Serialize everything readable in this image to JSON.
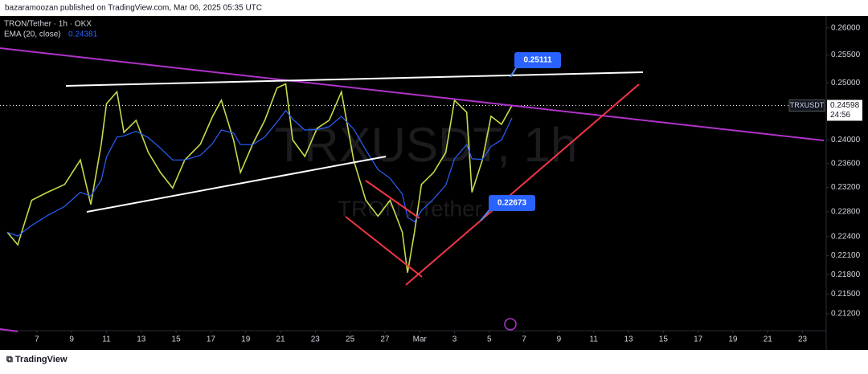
{
  "header": "bazaramoozan published on TradingView.com, Mar 06, 2025 05:35 UTC",
  "footer": "TradingView",
  "chart_data": {
    "type": "line",
    "title": "TRON/Tether · 1h · OKX",
    "watermark": [
      "TRXUSDT, 1h",
      "TRON / Tether"
    ],
    "log": true,
    "x": [
      -1.7,
      -1.1,
      -0.3,
      0.6,
      1.6,
      2.5,
      3.1,
      3.7,
      4.0,
      4.6,
      5.0,
      5.7,
      6.4,
      7.1,
      7.8,
      8.5,
      9.4,
      10.1,
      10.6,
      11.3,
      11.7,
      12.4,
      13.1,
      13.8,
      14.3,
      14.7,
      15.4,
      16.1,
      16.8,
      17.5,
      18.2,
      18.9,
      19.6,
      20.3,
      21.0,
      21.3,
      21.7,
      22.1,
      22.8,
      23.5,
      24.0,
      24.7,
      25.0,
      25.6,
      26.1,
      26.7,
      27.3
    ],
    "xlim": [
      -2.12,
      45.36
    ],
    "xticks": [
      {
        "value": 0,
        "label": "7"
      },
      {
        "value": 2,
        "label": "9"
      },
      {
        "value": 4,
        "label": "11"
      },
      {
        "value": 6,
        "label": "13"
      },
      {
        "value": 8,
        "label": "15"
      },
      {
        "value": 10,
        "label": "17"
      },
      {
        "value": 12,
        "label": "19"
      },
      {
        "value": 14,
        "label": "21"
      },
      {
        "value": 16,
        "label": "23"
      },
      {
        "value": 18,
        "label": "25"
      },
      {
        "value": 20,
        "label": "27"
      },
      {
        "value": 22,
        "label": "Mar"
      },
      {
        "value": 24,
        "label": "3"
      },
      {
        "value": 26,
        "label": "5"
      },
      {
        "value": 28,
        "label": "7"
      },
      {
        "value": 30,
        "label": "9"
      },
      {
        "value": 32,
        "label": "11"
      },
      {
        "value": 34,
        "label": "13"
      },
      {
        "value": 36,
        "label": "15"
      },
      {
        "value": 38,
        "label": "17"
      },
      {
        "value": 40,
        "label": "19"
      },
      {
        "value": 42,
        "label": "21"
      },
      {
        "value": 44,
        "label": "23"
      }
    ],
    "ylim": [
      0.2097,
      0.2625
    ],
    "yticks": [
      {
        "value": 0.26,
        "label": "0.26000"
      },
      {
        "value": 0.255,
        "label": "0.25500"
      },
      {
        "value": 0.25,
        "label": "0.25000"
      },
      {
        "value": 0.24,
        "label": "0.24000"
      },
      {
        "value": 0.236,
        "label": "0.23600"
      },
      {
        "value": 0.232,
        "label": "0.23200"
      },
      {
        "value": 0.228,
        "label": "0.22800"
      },
      {
        "value": 0.224,
        "label": "0.22400"
      },
      {
        "value": 0.221,
        "label": "0.22100"
      },
      {
        "value": 0.218,
        "label": "0.21800"
      },
      {
        "value": 0.215,
        "label": "0.21500"
      },
      {
        "value": 0.212,
        "label": "0.21200"
      }
    ],
    "series": [
      {
        "name": "TRXUSDT",
        "color": "#c9d94a",
        "values": [
          0.2247,
          0.2227,
          0.2299,
          0.2312,
          0.2325,
          0.2366,
          0.2292,
          0.2393,
          0.2463,
          0.2484,
          0.2413,
          0.2434,
          0.2379,
          0.2345,
          0.2319,
          0.2366,
          0.2393,
          0.2441,
          0.2469,
          0.24,
          0.2345,
          0.2393,
          0.2434,
          0.2491,
          0.2498,
          0.24,
          0.2372,
          0.242,
          0.2434,
          0.2484,
          0.2366,
          0.2299,
          0.2273,
          0.2299,
          0.2247,
          0.2183,
          0.2247,
          0.2325,
          0.2345,
          0.2379,
          0.2469,
          0.2448,
          0.2312,
          0.2366,
          0.2441,
          0.2427,
          0.24598
        ]
      },
      {
        "name": "EMA (20, close)",
        "color": "#2962ff",
        "value_label": "0.24381",
        "values": [
          0.2247,
          0.2241,
          0.2258,
          0.2274,
          0.2289,
          0.2312,
          0.2306,
          0.2332,
          0.2371,
          0.2405,
          0.2407,
          0.2415,
          0.2404,
          0.2386,
          0.2366,
          0.2366,
          0.2374,
          0.2394,
          0.2417,
          0.2412,
          0.2392,
          0.2392,
          0.2405,
          0.2431,
          0.2451,
          0.2436,
          0.2417,
          0.2418,
          0.2423,
          0.2441,
          0.2419,
          0.2383,
          0.235,
          0.2335,
          0.2309,
          0.2271,
          0.2264,
          0.2282,
          0.2301,
          0.2324,
          0.2368,
          0.2392,
          0.2368,
          0.2367,
          0.2389,
          0.24,
          0.2438
        ]
      }
    ],
    "last_price": 0.24598,
    "countdown": "24:56",
    "callouts": [
      0.25111,
      0.22673
    ]
  }
}
